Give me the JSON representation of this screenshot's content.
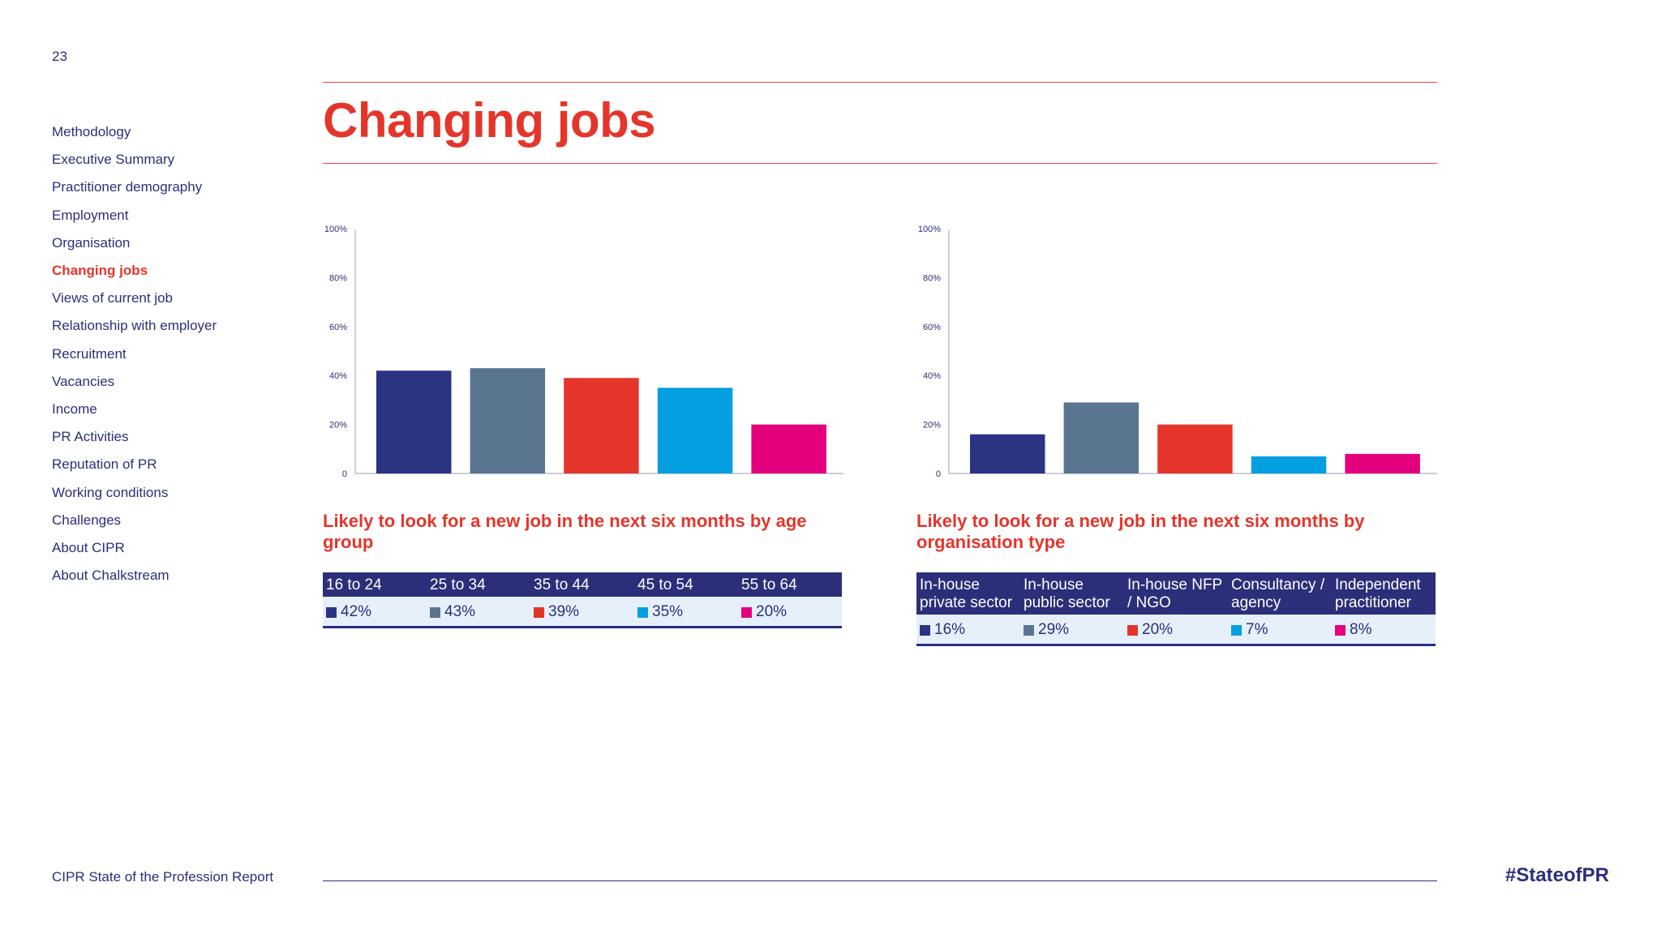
{
  "page_number": "23",
  "title": "Changing jobs",
  "sidebar": {
    "items": [
      {
        "label": "Methodology",
        "active": false
      },
      {
        "label": "Executive Summary",
        "active": false
      },
      {
        "label": "Practitioner demography",
        "active": false
      },
      {
        "label": "Employment",
        "active": false
      },
      {
        "label": "Organisation",
        "active": false
      },
      {
        "label": "Changing jobs",
        "active": true
      },
      {
        "label": "Views of current job",
        "active": false
      },
      {
        "label": "Relationship with employer",
        "active": false
      },
      {
        "label": "Recruitment",
        "active": false
      },
      {
        "label": "Vacancies",
        "active": false
      },
      {
        "label": "Income",
        "active": false
      },
      {
        "label": "PR Activities",
        "active": false
      },
      {
        "label": "Reputation of PR",
        "active": false
      },
      {
        "label": "Working conditions",
        "active": false
      },
      {
        "label": "Challenges",
        "active": false
      },
      {
        "label": "About CIPR",
        "active": false
      },
      {
        "label": "About Chalkstream",
        "active": false
      }
    ]
  },
  "chart_data": [
    {
      "type": "bar",
      "title": "Likely to look for a new job in the next six months by age group",
      "categories": [
        "16 to 24",
        "25 to 34",
        "35 to 44",
        "45 to 54",
        "55 to 64"
      ],
      "values": [
        42,
        43,
        39,
        35,
        20
      ],
      "value_labels": [
        "42%",
        "43%",
        "39%",
        "35%",
        "20%"
      ],
      "colors": [
        "#2b3482",
        "#5a7590",
        "#e5352b",
        "#039fe1",
        "#e4007c"
      ],
      "ylim": [
        0,
        100
      ],
      "yticks": [
        "0",
        "20%",
        "40%",
        "60%",
        "80%",
        "100%"
      ]
    },
    {
      "type": "bar",
      "title": "Likely to look for a new job in the next six months by organisation type",
      "categories": [
        "In-house private sector",
        "In-house public sector",
        "In-house NFP / NGO",
        "Consultancy / agency",
        "Independent practitioner"
      ],
      "values": [
        16,
        29,
        20,
        7,
        8
      ],
      "value_labels": [
        "16%",
        "29%",
        "20%",
        "7%",
        "8%"
      ],
      "colors": [
        "#2b3482",
        "#5a7590",
        "#e5352b",
        "#039fe1",
        "#e4007c"
      ],
      "ylim": [
        0,
        100
      ],
      "yticks": [
        "0",
        "20%",
        "40%",
        "60%",
        "80%",
        "100%"
      ]
    }
  ],
  "footer": {
    "report_name": "CIPR State of the Profession Report",
    "hashtag": "#StateofPR"
  },
  "colors": {
    "navy": "#2b2f7a",
    "red": "#e5352b"
  }
}
